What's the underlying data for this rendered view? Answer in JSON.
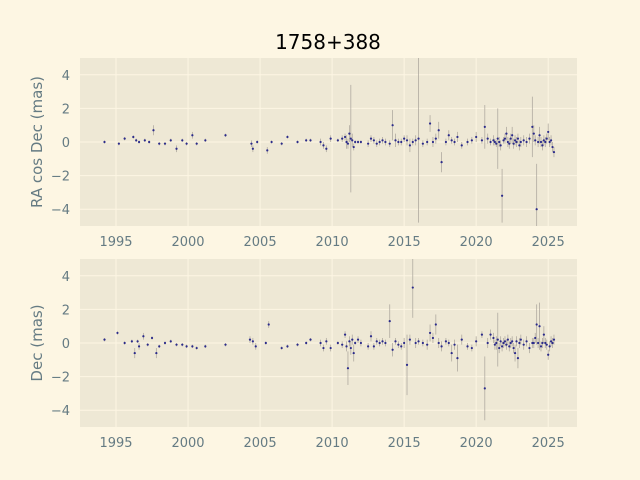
{
  "colors": {
    "figure_bg": "#fdf6e3",
    "axes_bg": "#eee8d5",
    "grid": "#fdf6e3",
    "point": "#2a2a8a",
    "error_bar": "#b0aaa0",
    "tick_text": "#657b83",
    "title_text": "#000000"
  },
  "chart_data": [
    {
      "type": "scatter",
      "title": "1758+388",
      "xlabel": "",
      "ylabel": "RA cos Dec (mas)",
      "xlim": [
        1992.5,
        2027
      ],
      "ylim": [
        -5,
        5
      ],
      "xticks": [
        1995,
        2000,
        2005,
        2010,
        2015,
        2020,
        2025
      ],
      "yticks": [
        -4,
        -2,
        0,
        2,
        4
      ],
      "grid": true,
      "x": [
        1994.2,
        1995.2,
        1995.6,
        1996.2,
        1996.4,
        1996.6,
        1997.0,
        1997.3,
        1997.6,
        1998.0,
        1998.4,
        1998.8,
        1999.2,
        1999.6,
        1999.9,
        2000.3,
        2000.6,
        2001.2,
        2002.6,
        2004.4,
        2004.5,
        2004.8,
        2005.5,
        2005.8,
        2006.5,
        2006.9,
        2007.6,
        2008.2,
        2008.5,
        2009.2,
        2009.4,
        2009.6,
        2009.9,
        2010.4,
        2010.7,
        2010.9,
        2011.0,
        2011.1,
        2011.2,
        2011.3,
        2011.4,
        2011.5,
        2011.6,
        2011.8,
        2012.0,
        2012.5,
        2012.7,
        2012.9,
        2013.1,
        2013.3,
        2013.5,
        2013.7,
        2014.0,
        2014.2,
        2014.4,
        2014.6,
        2014.8,
        2015.0,
        2015.2,
        2015.4,
        2015.6,
        2015.8,
        2016.0,
        2016.3,
        2016.6,
        2016.8,
        2017.0,
        2017.2,
        2017.4,
        2017.6,
        2017.9,
        2018.1,
        2018.3,
        2018.5,
        2018.7,
        2019.0,
        2019.4,
        2019.7,
        2020.0,
        2020.4,
        2020.6,
        2020.8,
        2021.0,
        2021.2,
        2021.3,
        2021.4,
        2021.5,
        2021.6,
        2021.7,
        2021.8,
        2021.9,
        2022.0,
        2022.1,
        2022.2,
        2022.3,
        2022.4,
        2022.5,
        2022.6,
        2022.7,
        2022.8,
        2022.9,
        2023.0,
        2023.1,
        2023.3,
        2023.5,
        2023.7,
        2023.9,
        2024.0,
        2024.1,
        2024.2,
        2024.3,
        2024.4,
        2024.5,
        2024.6,
        2024.7,
        2024.8,
        2024.9,
        2025.0,
        2025.1,
        2025.2,
        2025.3,
        2025.4
      ],
      "y": [
        0.0,
        -0.1,
        0.2,
        0.3,
        0.1,
        0.0,
        0.1,
        0.0,
        0.7,
        -0.1,
        -0.1,
        0.1,
        -0.4,
        0.1,
        -0.1,
        0.4,
        -0.1,
        0.1,
        0.4,
        -0.1,
        -0.4,
        0.0,
        -0.5,
        0.0,
        -0.1,
        0.3,
        0.0,
        0.1,
        0.1,
        0.0,
        -0.2,
        -0.4,
        0.2,
        0.1,
        0.2,
        0.3,
        0.0,
        -0.1,
        0.5,
        0.2,
        0.1,
        -0.3,
        0.0,
        0.0,
        0.0,
        -0.1,
        0.2,
        0.1,
        -0.1,
        0.0,
        0.1,
        0.0,
        -0.1,
        1.0,
        0.1,
        0.0,
        0.0,
        0.2,
        0.1,
        -0.2,
        0.0,
        0.1,
        0.2,
        -0.1,
        0.0,
        1.1,
        0.0,
        0.2,
        0.7,
        -1.2,
        0.0,
        0.4,
        0.1,
        0.0,
        0.3,
        -0.2,
        0.0,
        0.1,
        0.3,
        0.1,
        0.9,
        0.2,
        0.0,
        0.1,
        0.0,
        -0.1,
        0.2,
        0.0,
        -0.2,
        -3.2,
        0.1,
        0.2,
        0.5,
        0.0,
        -0.1,
        0.2,
        0.4,
        -0.1,
        0.1,
        0.0,
        0.2,
        -0.2,
        0.0,
        0.1,
        0.0,
        0.2,
        0.9,
        0.5,
        0.1,
        -4.0,
        0.0,
        0.4,
        0.0,
        -0.2,
        0.1,
        0.0,
        0.2,
        0.6,
        0.0,
        0.1,
        -0.3,
        -0.6
      ],
      "err": [
        0.1,
        0.1,
        0.1,
        0.1,
        0.1,
        0.1,
        0.1,
        0.1,
        0.3,
        0.1,
        0.1,
        0.1,
        0.2,
        0.1,
        0.1,
        0.2,
        0.1,
        0.1,
        0.1,
        0.2,
        0.2,
        0.1,
        0.2,
        0.1,
        0.1,
        0.1,
        0.1,
        0.1,
        0.1,
        0.2,
        0.2,
        0.2,
        0.2,
        0.1,
        0.2,
        0.2,
        0.4,
        0.3,
        0.5,
        3.2,
        0.4,
        0.2,
        0.1,
        0.1,
        0.1,
        0.2,
        0.2,
        0.2,
        0.2,
        0.2,
        0.2,
        0.2,
        0.2,
        0.9,
        0.4,
        0.2,
        0.2,
        0.2,
        0.3,
        0.4,
        0.2,
        0.3,
        5.0,
        0.2,
        0.2,
        0.5,
        0.3,
        0.3,
        0.5,
        0.6,
        0.2,
        0.3,
        0.2,
        0.2,
        0.3,
        0.2,
        0.2,
        0.2,
        0.3,
        0.2,
        1.3,
        0.3,
        0.2,
        0.3,
        0.2,
        0.2,
        1.8,
        0.3,
        0.3,
        1.6,
        0.2,
        0.3,
        0.4,
        0.3,
        0.3,
        0.3,
        0.5,
        0.3,
        0.3,
        0.3,
        0.3,
        0.3,
        0.3,
        0.3,
        0.3,
        0.3,
        1.8,
        0.5,
        0.3,
        2.7,
        0.3,
        0.5,
        0.3,
        0.3,
        0.3,
        0.3,
        0.3,
        0.5,
        0.3,
        0.3,
        0.3,
        0.3
      ]
    },
    {
      "type": "scatter",
      "title": "",
      "xlabel": "",
      "ylabel": "Dec (mas)",
      "xlim": [
        1992.5,
        2027
      ],
      "ylim": [
        -5,
        5
      ],
      "xticks": [
        1995,
        2000,
        2005,
        2010,
        2015,
        2020,
        2025
      ],
      "yticks": [
        -4,
        -2,
        0,
        2,
        4
      ],
      "grid": true,
      "x": [
        1994.2,
        1995.1,
        1995.6,
        1996.1,
        1996.3,
        1996.5,
        1996.6,
        1996.9,
        1997.2,
        1997.5,
        1997.8,
        1998.0,
        1998.4,
        1998.8,
        1999.2,
        1999.6,
        1999.9,
        2000.3,
        2000.6,
        2001.2,
        2002.6,
        2004.3,
        2004.5,
        2004.7,
        2005.4,
        2005.6,
        2006.5,
        2006.9,
        2007.6,
        2008.2,
        2008.5,
        2009.2,
        2009.4,
        2009.6,
        2009.9,
        2010.4,
        2010.7,
        2010.9,
        2011.0,
        2011.1,
        2011.2,
        2011.3,
        2011.4,
        2011.5,
        2011.6,
        2011.8,
        2012.0,
        2012.5,
        2012.7,
        2012.9,
        2013.1,
        2013.3,
        2013.5,
        2013.7,
        2014.0,
        2014.2,
        2014.4,
        2014.6,
        2014.8,
        2015.0,
        2015.2,
        2015.4,
        2015.6,
        2015.8,
        2016.0,
        2016.3,
        2016.6,
        2016.8,
        2017.0,
        2017.2,
        2017.4,
        2017.6,
        2017.9,
        2018.1,
        2018.3,
        2018.5,
        2018.7,
        2019.0,
        2019.4,
        2019.7,
        2020.0,
        2020.4,
        2020.6,
        2020.8,
        2021.0,
        2021.2,
        2021.3,
        2021.4,
        2021.5,
        2021.6,
        2021.7,
        2021.8,
        2021.9,
        2022.0,
        2022.1,
        2022.2,
        2022.3,
        2022.4,
        2022.5,
        2022.6,
        2022.7,
        2022.8,
        2022.9,
        2023.0,
        2023.1,
        2023.3,
        2023.5,
        2023.7,
        2023.9,
        2024.0,
        2024.1,
        2024.2,
        2024.3,
        2024.4,
        2024.5,
        2024.6,
        2024.7,
        2024.8,
        2024.9,
        2025.0,
        2025.1,
        2025.2,
        2025.3,
        2025.4
      ],
      "y": [
        0.2,
        0.6,
        0.0,
        0.1,
        -0.6,
        0.1,
        -0.2,
        0.4,
        -0.1,
        0.3,
        -0.6,
        -0.2,
        0.0,
        0.1,
        -0.1,
        -0.1,
        -0.2,
        -0.2,
        -0.3,
        -0.2,
        -0.1,
        0.2,
        0.1,
        -0.2,
        0.0,
        1.1,
        -0.3,
        -0.2,
        -0.1,
        0.0,
        0.2,
        0.0,
        -0.3,
        0.1,
        -0.3,
        0.0,
        -0.1,
        0.5,
        -0.2,
        -1.5,
        0.1,
        -0.3,
        0.2,
        -0.6,
        0.0,
        0.2,
        0.0,
        -0.2,
        0.4,
        -0.2,
        0.1,
        0.0,
        0.1,
        0.0,
        1.3,
        -0.4,
        0.1,
        -0.1,
        -0.2,
        0.0,
        -1.3,
        0.2,
        3.3,
        0.0,
        0.1,
        0.0,
        -0.1,
        0.6,
        0.3,
        1.1,
        0.0,
        -0.2,
        0.1,
        0.0,
        -0.6,
        -0.1,
        -0.9,
        0.2,
        -0.2,
        -0.3,
        0.1,
        0.5,
        -2.7,
        0.0,
        0.5,
        0.3,
        -0.1,
        0.0,
        0.2,
        -0.3,
        0.1,
        -0.2,
        0.0,
        0.1,
        -0.1,
        0.2,
        -0.2,
        0.0,
        0.1,
        -0.3,
        -0.6,
        0.1,
        -0.9,
        0.0,
        0.2,
        -0.1,
        0.1,
        -0.3,
        0.0,
        0.0,
        0.3,
        1.1,
        0.0,
        1.0,
        -0.2,
        0.0,
        0.5,
        0.0,
        -0.1,
        -0.7,
        -0.2,
        0.1,
        0.0,
        0.2
      ],
      "err": [
        0.1,
        0.1,
        0.1,
        0.1,
        0.3,
        0.1,
        0.2,
        0.2,
        0.1,
        0.1,
        0.3,
        0.1,
        0.1,
        0.1,
        0.1,
        0.1,
        0.1,
        0.1,
        0.1,
        0.1,
        0.1,
        0.2,
        0.2,
        0.2,
        0.1,
        0.2,
        0.1,
        0.1,
        0.1,
        0.1,
        0.1,
        0.2,
        0.2,
        0.2,
        0.2,
        0.1,
        0.2,
        0.2,
        0.3,
        1.0,
        0.3,
        0.4,
        0.3,
        0.5,
        0.1,
        0.2,
        0.2,
        0.2,
        0.3,
        0.2,
        0.2,
        0.2,
        0.2,
        0.2,
        1.0,
        0.4,
        0.2,
        0.2,
        0.2,
        0.3,
        1.8,
        0.3,
        1.8,
        0.3,
        0.2,
        0.2,
        0.3,
        0.5,
        0.3,
        0.6,
        0.3,
        0.3,
        0.2,
        0.2,
        0.5,
        0.3,
        0.8,
        0.3,
        0.2,
        0.2,
        0.3,
        0.2,
        1.9,
        0.3,
        0.3,
        0.3,
        0.3,
        0.4,
        1.6,
        0.3,
        0.3,
        0.3,
        0.3,
        0.3,
        0.3,
        0.3,
        0.3,
        0.3,
        0.3,
        0.3,
        0.5,
        0.3,
        0.6,
        0.3,
        0.3,
        0.3,
        0.3,
        0.3,
        0.3,
        0.3,
        0.3,
        1.2,
        0.3,
        1.4,
        0.3,
        0.3,
        0.5,
        0.3,
        0.3,
        0.3,
        0.3,
        0.3,
        0.3,
        0.3
      ]
    }
  ]
}
